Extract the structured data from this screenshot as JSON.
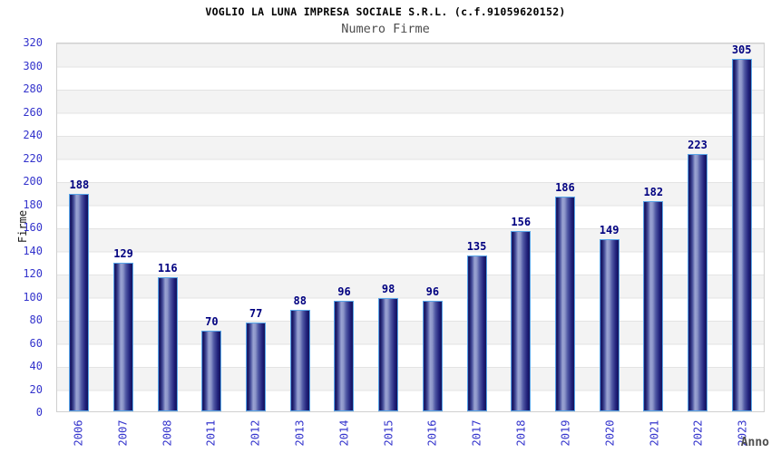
{
  "chart_data": {
    "type": "bar",
    "title": "VOGLIO LA LUNA IMPRESA SOCIALE S.R.L. (c.f.91059620152)",
    "subtitle": "Numero Firme",
    "xlabel": "Anno",
    "ylabel": "Firme",
    "categories": [
      "2006",
      "2007",
      "2008",
      "2011",
      "2012",
      "2013",
      "2014",
      "2015",
      "2016",
      "2017",
      "2018",
      "2019",
      "2020",
      "2021",
      "2022",
      "2023"
    ],
    "values": [
      188,
      129,
      116,
      70,
      77,
      88,
      96,
      98,
      96,
      135,
      156,
      186,
      149,
      182,
      223,
      305
    ],
    "ylim": [
      0,
      320
    ],
    "ytick_step": 20,
    "grid": "horizontal-bands-alternating",
    "legend": "none",
    "colors": {
      "bar_dark": "#171760",
      "bar_highlight": "#9aa3d2",
      "bar_border": "#58a5e8",
      "value_label": "#000080",
      "axis_tick_label": "#3333cc",
      "band_gray": "#f3f3f3",
      "band_white": "#ffffff",
      "grid_line": "#e3e3e3",
      "title_color": "#000000",
      "subtitle_color": "#4d4d4d"
    }
  }
}
